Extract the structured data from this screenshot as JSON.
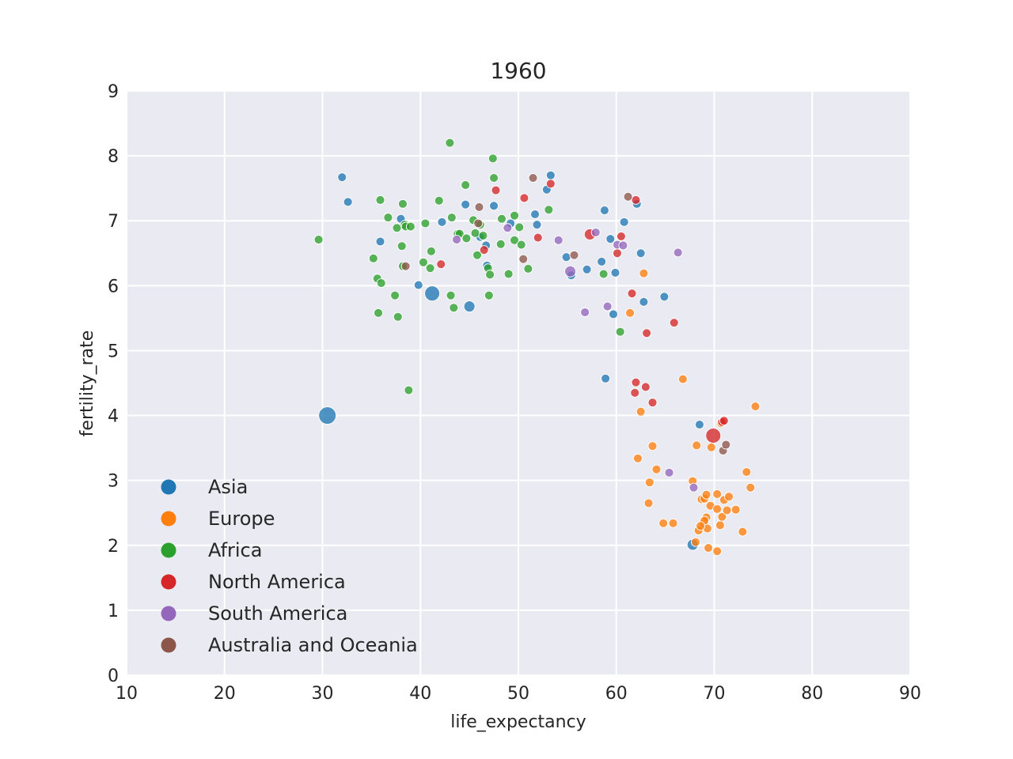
{
  "chart_data": {
    "type": "scatter",
    "title": "1960",
    "xlabel": "life_expectancy",
    "ylabel": "fertility_rate",
    "xlim": [
      10,
      90
    ],
    "ylim": [
      0,
      9
    ],
    "xticks": [
      "10",
      "20",
      "30",
      "40",
      "50",
      "60",
      "70",
      "80",
      "90"
    ],
    "yticks": [
      "0",
      "1",
      "2",
      "3",
      "4",
      "5",
      "6",
      "7",
      "8",
      "9"
    ],
    "grid": true,
    "legend_position": "lower-left",
    "series": [
      {
        "name": "Asia",
        "color": "#1f77b4",
        "points": [
          [
            30.5,
            4.0,
            "xl"
          ],
          [
            32.0,
            7.67
          ],
          [
            32.6,
            7.29
          ],
          [
            35.9,
            6.68
          ],
          [
            38.0,
            7.03
          ],
          [
            39.8,
            6.01
          ],
          [
            41.2,
            5.88,
            "l"
          ],
          [
            42.2,
            6.98
          ],
          [
            44.6,
            7.25
          ],
          [
            45.0,
            5.68,
            "m"
          ],
          [
            46.1,
            6.75
          ],
          [
            46.7,
            6.62
          ],
          [
            46.8,
            6.31
          ],
          [
            47.5,
            7.23
          ],
          [
            49.2,
            6.96
          ],
          [
            51.7,
            7.1
          ],
          [
            51.9,
            6.94
          ],
          [
            52.9,
            7.48
          ],
          [
            53.3,
            7.7
          ],
          [
            54.9,
            6.44
          ],
          [
            55.4,
            6.16
          ],
          [
            57.0,
            6.25
          ],
          [
            58.5,
            6.37
          ],
          [
            58.8,
            7.16
          ],
          [
            59.4,
            6.72
          ],
          [
            59.7,
            5.56
          ],
          [
            59.9,
            6.2
          ],
          [
            60.8,
            6.98
          ],
          [
            62.1,
            7.26
          ],
          [
            62.5,
            6.5
          ],
          [
            62.8,
            5.75
          ],
          [
            64.9,
            5.83
          ],
          [
            68.5,
            3.86
          ],
          [
            58.9,
            4.57
          ],
          [
            67.8,
            2.01,
            "m"
          ]
        ]
      },
      {
        "name": "Europe",
        "color": "#ff7f0e",
        "points": [
          [
            61.4,
            5.58
          ],
          [
            62.8,
            6.19
          ],
          [
            62.2,
            3.34
          ],
          [
            62.5,
            4.06
          ],
          [
            63.3,
            2.65
          ],
          [
            63.4,
            2.97
          ],
          [
            63.7,
            3.53
          ],
          [
            64.1,
            3.17
          ],
          [
            64.8,
            2.34
          ],
          [
            65.8,
            2.34
          ],
          [
            66.8,
            4.56
          ],
          [
            67.8,
            2.99
          ],
          [
            68.1,
            2.05
          ],
          [
            68.2,
            3.54
          ],
          [
            68.4,
            2.23
          ],
          [
            68.7,
            2.71
          ],
          [
            68.9,
            2.34
          ],
          [
            69.0,
            2.72
          ],
          [
            69.2,
            2.78
          ],
          [
            69.2,
            2.43
          ],
          [
            69.3,
            2.26
          ],
          [
            69.4,
            1.96
          ],
          [
            69.6,
            2.61
          ],
          [
            69.7,
            3.51
          ],
          [
            70.3,
            2.79
          ],
          [
            70.3,
            2.56
          ],
          [
            70.3,
            1.91
          ],
          [
            70.6,
            2.31
          ],
          [
            70.7,
            3.88
          ],
          [
            70.8,
            2.44
          ],
          [
            71.0,
            2.7
          ],
          [
            71.3,
            2.54
          ],
          [
            71.5,
            2.75
          ],
          [
            72.2,
            2.55
          ],
          [
            72.9,
            2.21
          ],
          [
            73.3,
            3.13
          ],
          [
            73.7,
            2.89
          ],
          [
            74.2,
            4.14
          ],
          [
            69.0,
            2.38
          ],
          [
            68.6,
            2.3
          ]
        ]
      },
      {
        "name": "Africa",
        "color": "#2ca02c",
        "points": [
          [
            29.6,
            6.71
          ],
          [
            35.2,
            6.42
          ],
          [
            35.6,
            6.11
          ],
          [
            35.7,
            5.58
          ],
          [
            35.9,
            7.32
          ],
          [
            36.0,
            6.04
          ],
          [
            36.7,
            7.05
          ],
          [
            37.4,
            5.85
          ],
          [
            37.6,
            6.89
          ],
          [
            37.7,
            5.52
          ],
          [
            38.1,
            6.61
          ],
          [
            38.2,
            6.3
          ],
          [
            38.2,
            7.26
          ],
          [
            38.4,
            6.94
          ],
          [
            38.5,
            6.91
          ],
          [
            38.8,
            4.39
          ],
          [
            39.0,
            6.91
          ],
          [
            40.3,
            6.36
          ],
          [
            40.5,
            6.96
          ],
          [
            41.0,
            6.27
          ],
          [
            41.1,
            6.53
          ],
          [
            41.9,
            7.31
          ],
          [
            43.0,
            8.2
          ],
          [
            43.1,
            5.85
          ],
          [
            43.2,
            7.05
          ],
          [
            43.4,
            5.66
          ],
          [
            43.8,
            6.8
          ],
          [
            44.0,
            6.8
          ],
          [
            44.6,
            7.55
          ],
          [
            44.7,
            6.73
          ],
          [
            45.4,
            7.01
          ],
          [
            45.6,
            6.81
          ],
          [
            45.8,
            6.47
          ],
          [
            46.1,
            6.94
          ],
          [
            46.4,
            6.77
          ],
          [
            46.9,
            6.27
          ],
          [
            47.0,
            5.85
          ],
          [
            47.1,
            6.17
          ],
          [
            47.4,
            7.96
          ],
          [
            47.5,
            7.66
          ],
          [
            48.2,
            6.64
          ],
          [
            48.3,
            7.03
          ],
          [
            49.0,
            6.18
          ],
          [
            49.6,
            6.7
          ],
          [
            49.6,
            7.08
          ],
          [
            50.1,
            6.9
          ],
          [
            50.3,
            6.63
          ],
          [
            51.0,
            6.26
          ],
          [
            53.1,
            7.17
          ],
          [
            58.7,
            6.18
          ],
          [
            60.4,
            5.29
          ]
        ]
      },
      {
        "name": "North America",
        "color": "#d62728",
        "points": [
          [
            42.1,
            6.33
          ],
          [
            46.5,
            6.55
          ],
          [
            47.7,
            7.47
          ],
          [
            50.6,
            7.35
          ],
          [
            52.0,
            6.74
          ],
          [
            53.3,
            7.57
          ],
          [
            57.3,
            6.79,
            "m"
          ],
          [
            60.1,
            6.5
          ],
          [
            60.5,
            6.76
          ],
          [
            61.6,
            5.88
          ],
          [
            62.0,
            7.32
          ],
          [
            62.0,
            4.51
          ],
          [
            61.9,
            4.35
          ],
          [
            63.0,
            4.44
          ],
          [
            63.1,
            5.27
          ],
          [
            63.7,
            4.2
          ],
          [
            65.9,
            5.43
          ],
          [
            69.9,
            3.69,
            "l"
          ],
          [
            70.8,
            3.9
          ],
          [
            71.0,
            3.92
          ]
        ]
      },
      {
        "name": "South America",
        "color": "#9467bd",
        "points": [
          [
            43.7,
            6.71
          ],
          [
            48.9,
            6.89
          ],
          [
            54.1,
            6.7
          ],
          [
            55.3,
            6.22,
            "m"
          ],
          [
            56.8,
            5.59
          ],
          [
            57.9,
            6.82
          ],
          [
            59.1,
            5.68
          ],
          [
            60.1,
            6.63
          ],
          [
            60.7,
            6.62
          ],
          [
            65.4,
            3.12
          ],
          [
            66.3,
            6.51
          ],
          [
            67.9,
            2.89
          ]
        ]
      },
      {
        "name": "Australia and Oceania",
        "color": "#8c564b",
        "points": [
          [
            38.5,
            6.3
          ],
          [
            45.9,
            6.96
          ],
          [
            46.0,
            7.21
          ],
          [
            50.5,
            6.41
          ],
          [
            51.5,
            7.66
          ],
          [
            55.7,
            6.47
          ],
          [
            61.2,
            7.37
          ],
          [
            70.9,
            3.46
          ],
          [
            71.2,
            3.55
          ]
        ]
      }
    ]
  }
}
